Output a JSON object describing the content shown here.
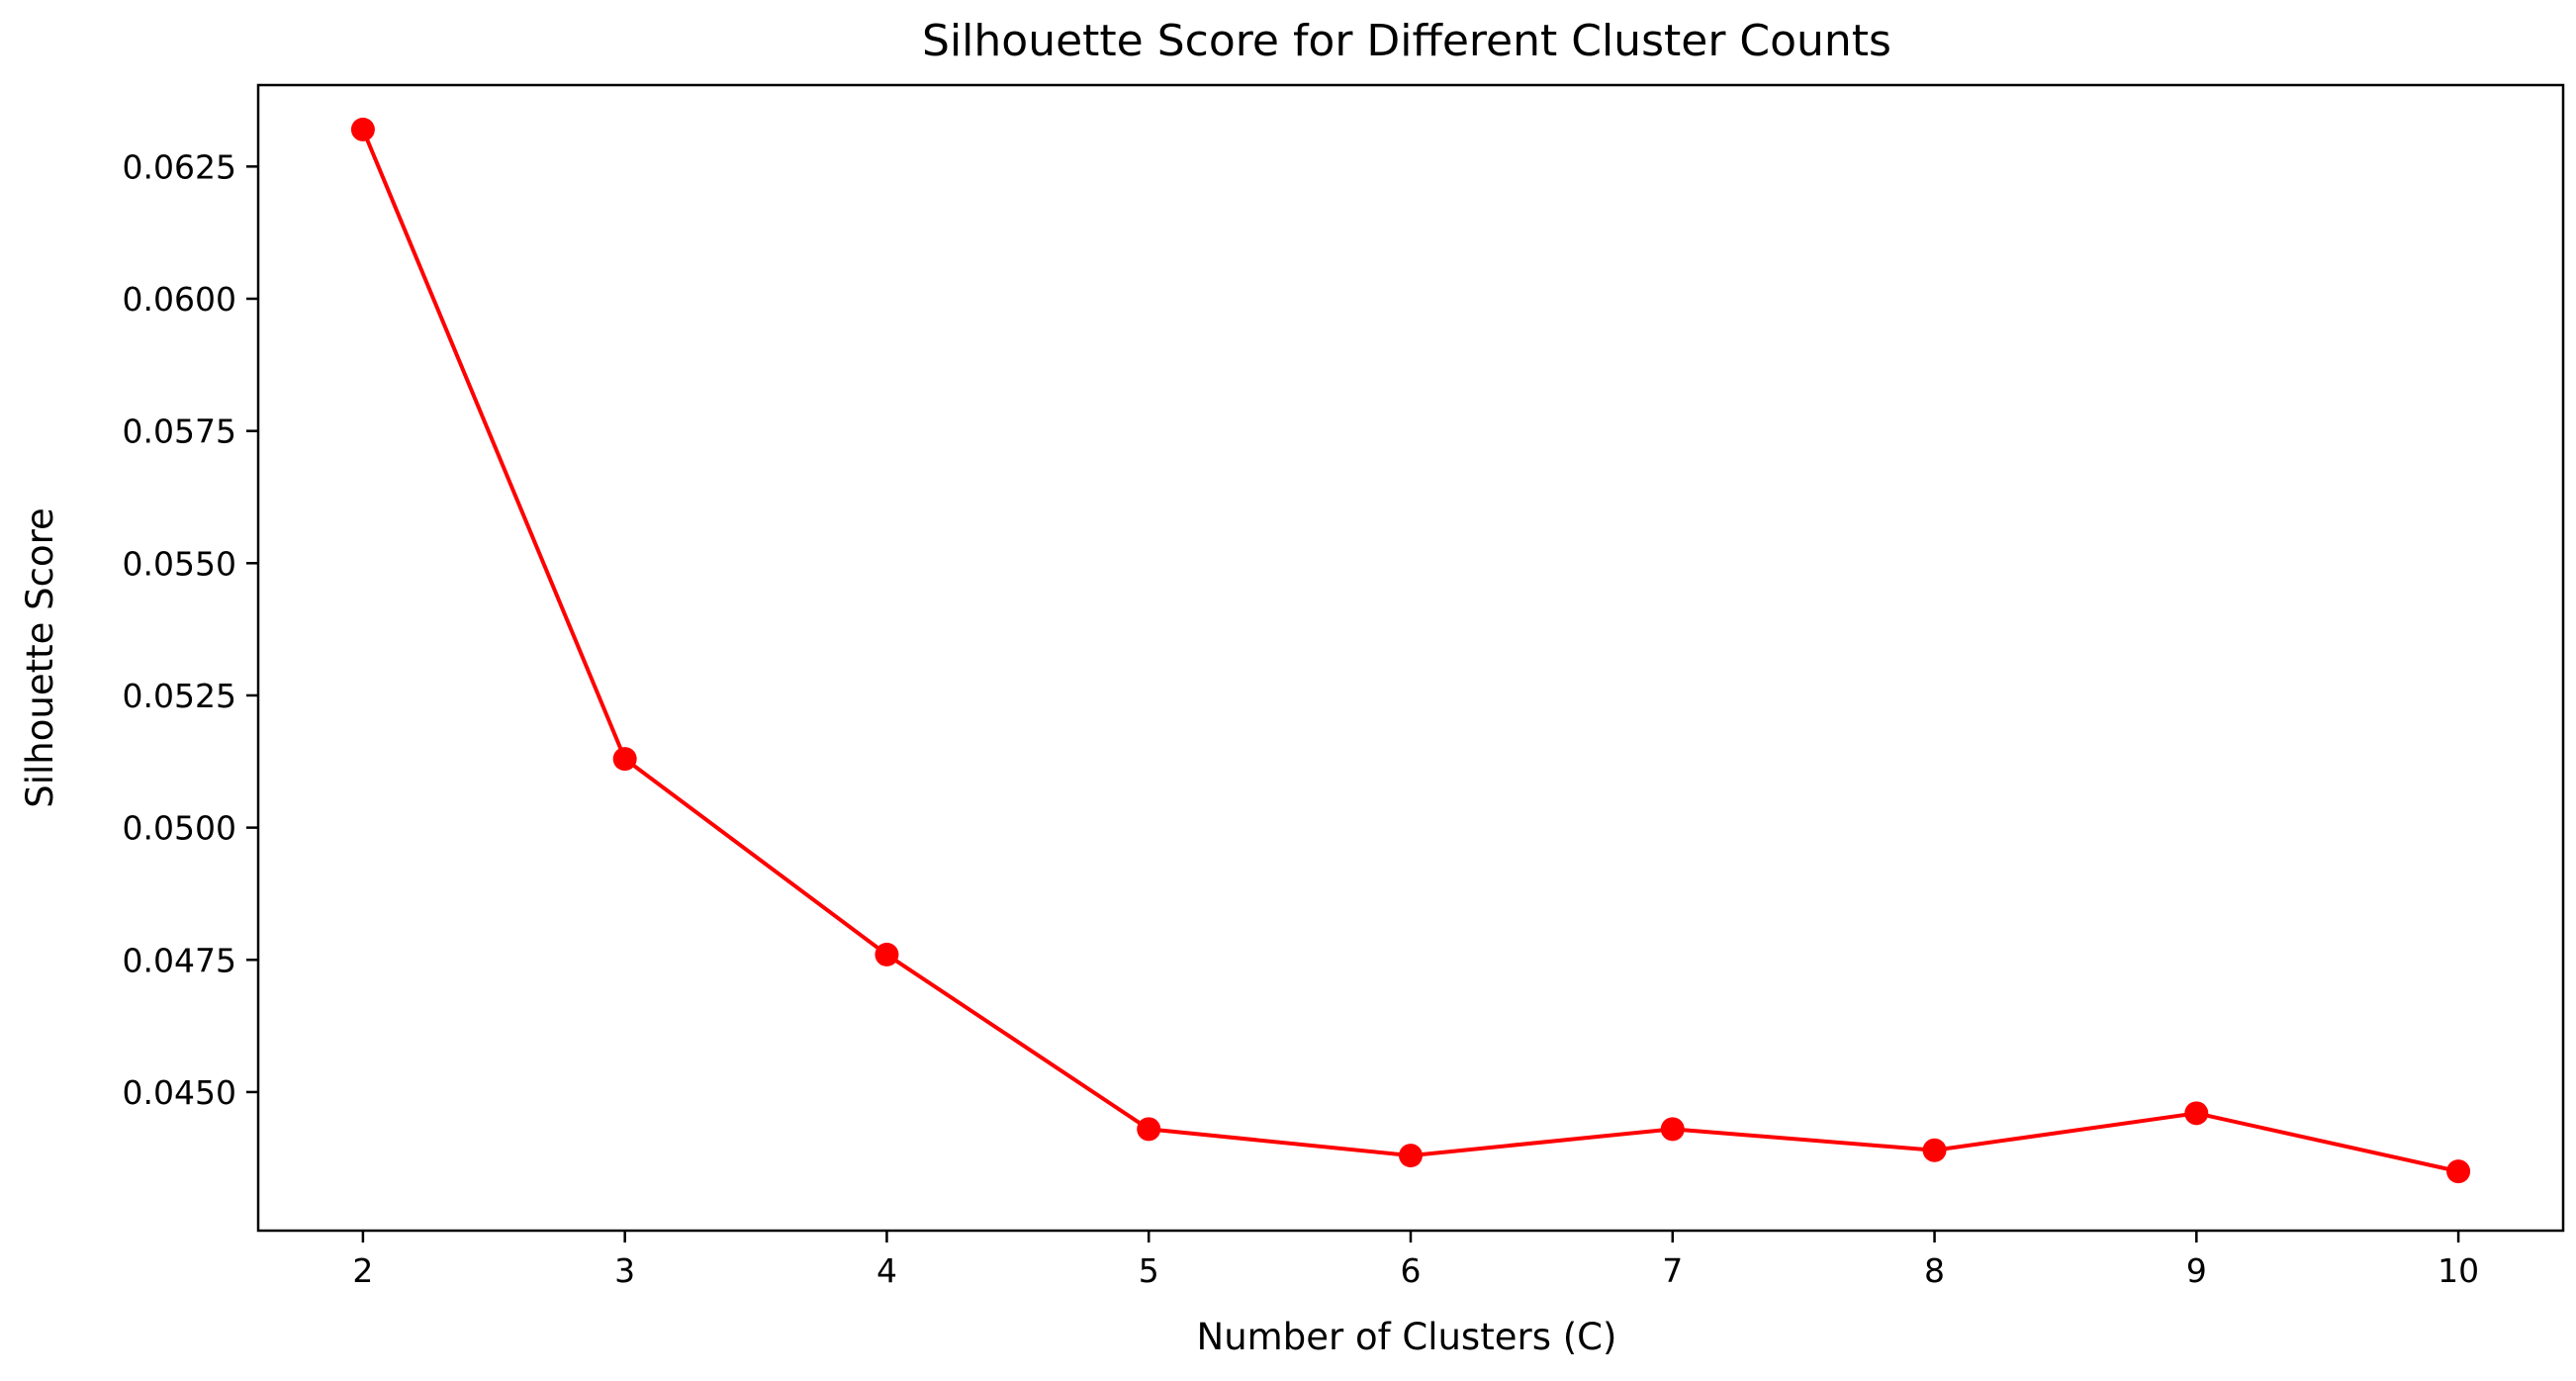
{
  "chart_data": {
    "type": "line",
    "title": "Silhouette Score for Different Cluster Counts",
    "xlabel": "Number of Clusters (C)",
    "ylabel": "Silhouette Score",
    "x": [
      2,
      3,
      4,
      5,
      6,
      7,
      8,
      9,
      10
    ],
    "series": [
      {
        "values": [
          0.0632,
          0.0513,
          0.0476,
          0.0443,
          0.0438,
          0.0443,
          0.0439,
          0.0446,
          0.0435
        ],
        "color": "#ff0000",
        "marker": "circle"
      }
    ],
    "xticks": [
      "2",
      "3",
      "4",
      "5",
      "6",
      "7",
      "8",
      "9",
      "10"
    ],
    "yticks": [
      "0.0450",
      "0.0475",
      "0.0500",
      "0.0525",
      "0.0550",
      "0.0575",
      "0.0600",
      "0.0625"
    ],
    "ytick_values": [
      0.045,
      0.0475,
      0.05,
      0.0525,
      0.055,
      0.0575,
      0.06,
      0.0625
    ],
    "xlim": [
      1.6,
      10.4
    ],
    "ylim": [
      0.04238,
      0.06404
    ],
    "grid": false,
    "legend": false
  }
}
